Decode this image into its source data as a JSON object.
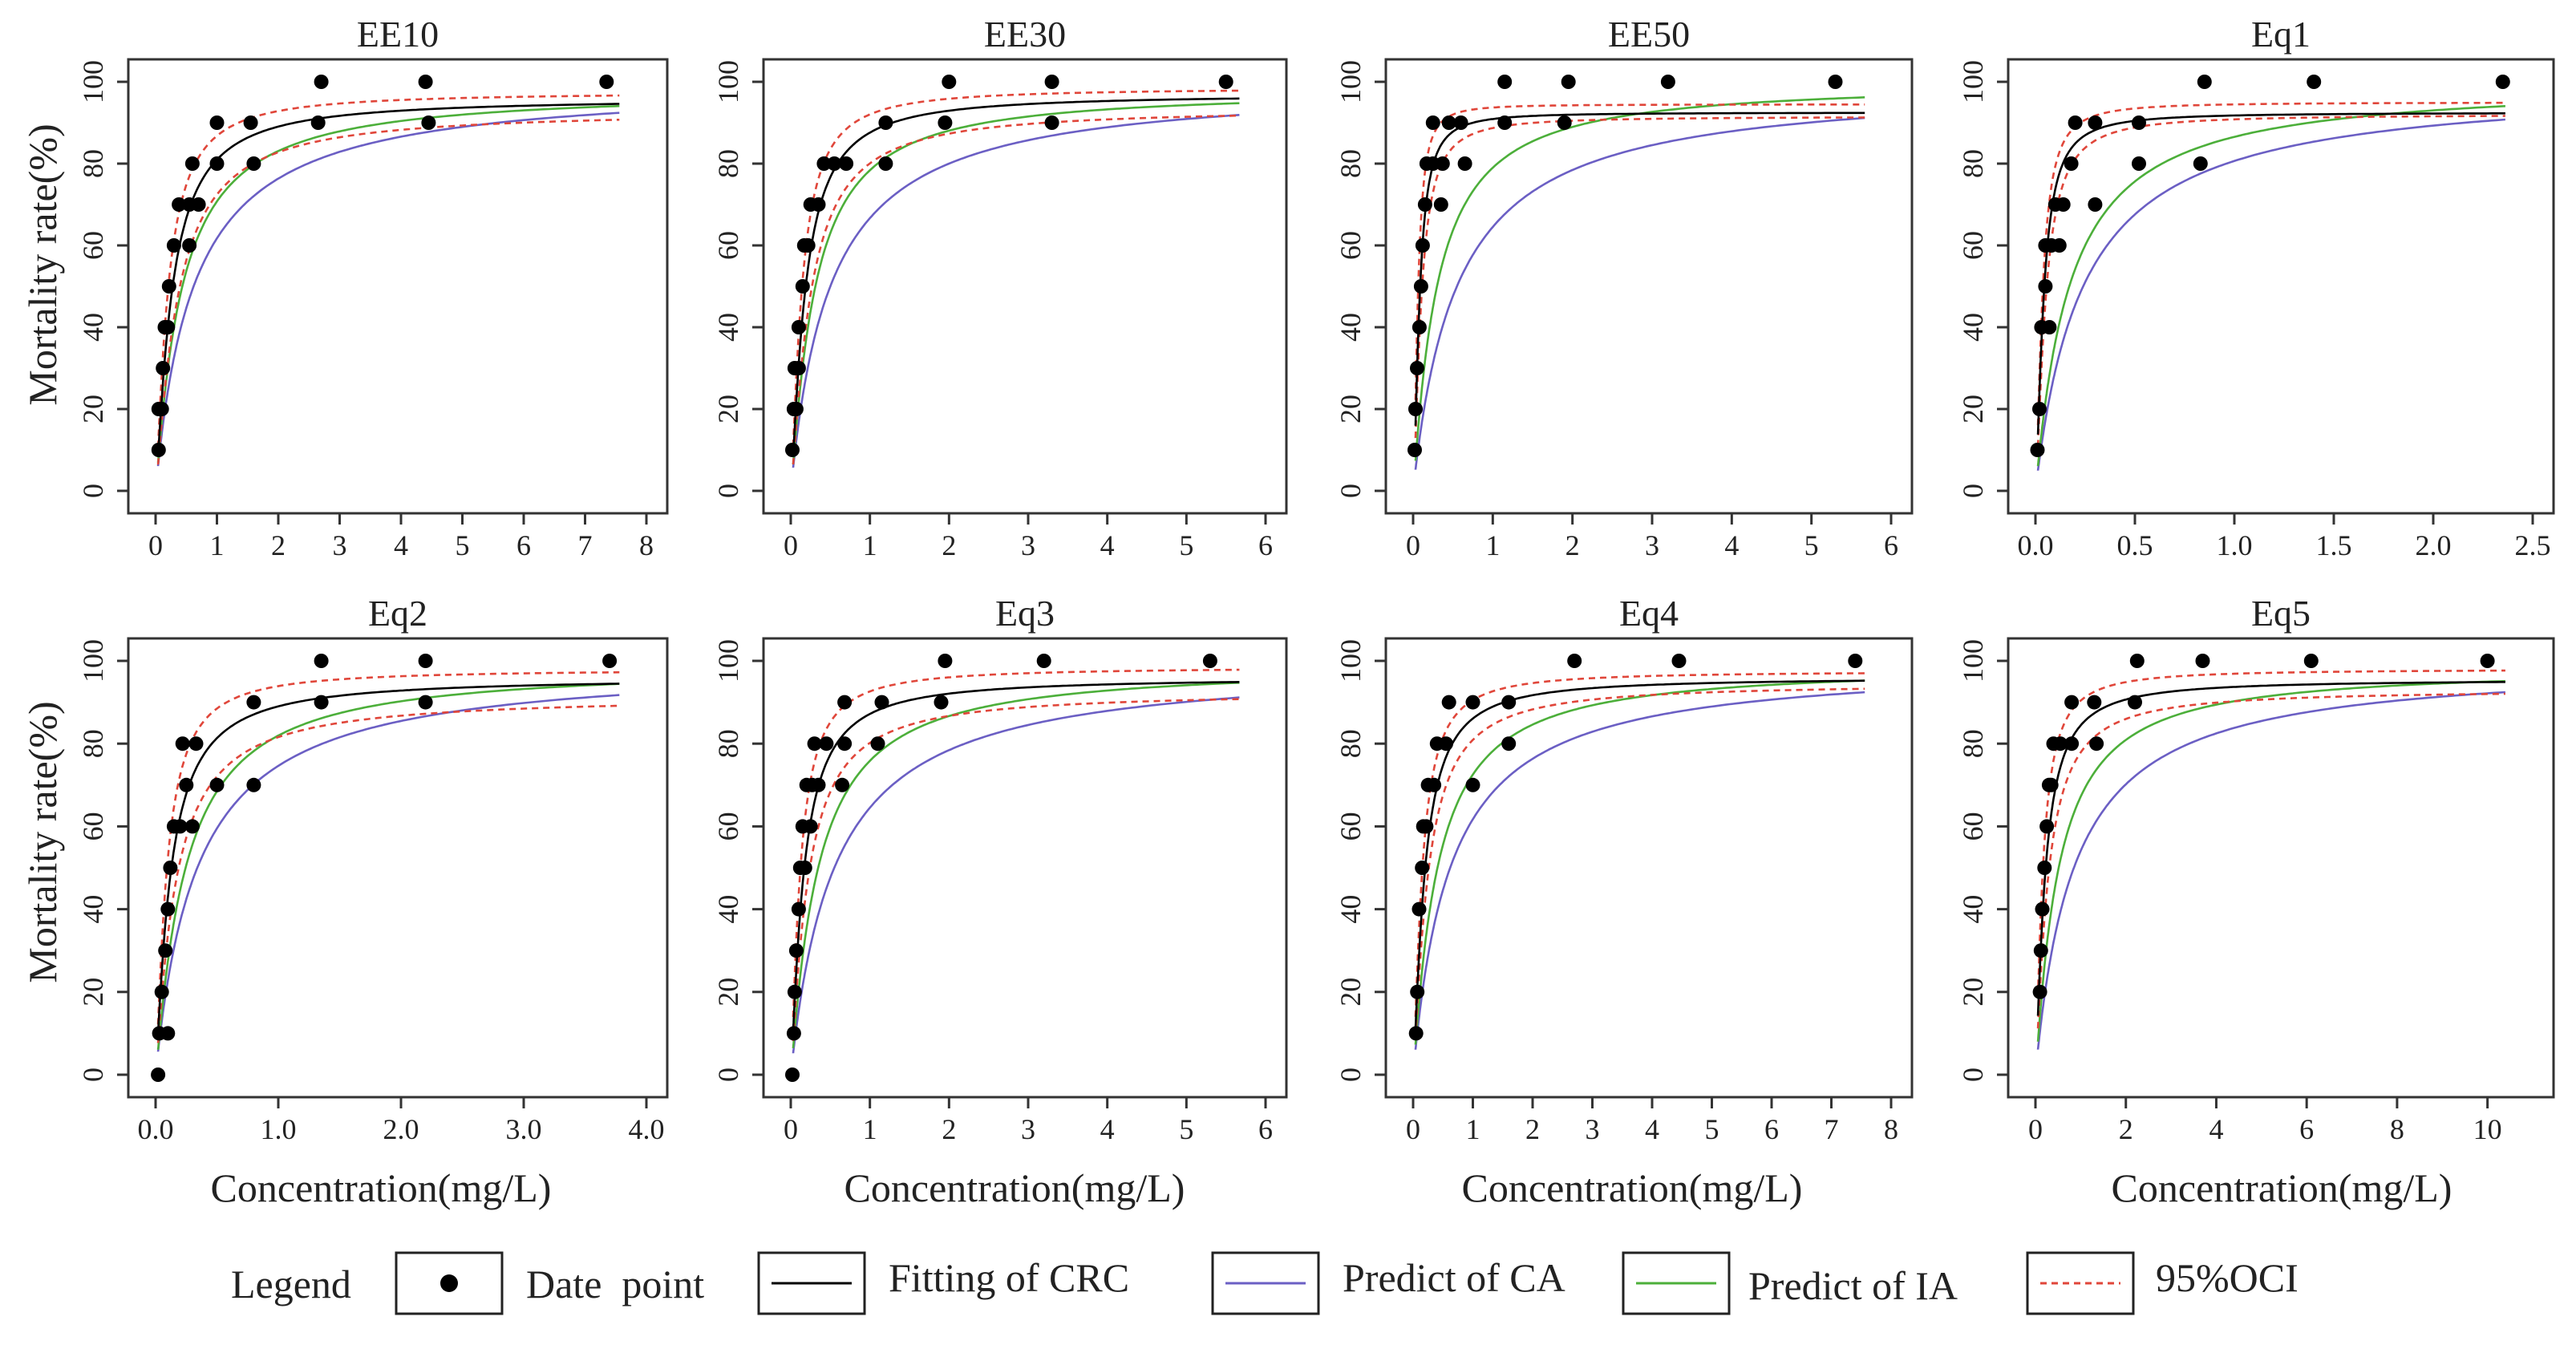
{
  "figure": {
    "y_axis_title": "Mortality rate(%)",
    "x_axis_title": "Concentration(mg/L)"
  },
  "legend": {
    "title": "Legend",
    "items": [
      {
        "key": "points",
        "label": "Date  point",
        "style": "dot",
        "color": "#000000"
      },
      {
        "key": "fit",
        "label": "Fitting of CRC",
        "style": "line",
        "color": "#000000"
      },
      {
        "key": "ca",
        "label": "Predict of CA",
        "style": "line",
        "color": "#6b5fc4"
      },
      {
        "key": "ia",
        "label": "Predict of IA",
        "style": "line",
        "color": "#4caf3a"
      },
      {
        "key": "oci",
        "label": "95%OCI",
        "style": "dash",
        "color": "#e0463a"
      }
    ]
  },
  "chart_data": [
    {
      "title": "EE10",
      "type": "scatter",
      "xlim": [
        0,
        8
      ],
      "ylim": [
        0,
        100
      ],
      "xticks": [
        0,
        1,
        2,
        3,
        4,
        5,
        6,
        7,
        8
      ],
      "xtick_labels": [
        "0",
        "1",
        "2",
        "3",
        "4",
        "5",
        "6",
        "7",
        "8"
      ],
      "yticks": [
        0,
        20,
        40,
        60,
        80,
        100
      ],
      "points": [
        [
          0.05,
          10
        ],
        [
          0.05,
          20
        ],
        [
          0.1,
          20
        ],
        [
          0.12,
          30
        ],
        [
          0.15,
          40
        ],
        [
          0.2,
          40
        ],
        [
          0.22,
          50
        ],
        [
          0.3,
          60
        ],
        [
          0.38,
          70
        ],
        [
          0.55,
          60
        ],
        [
          0.55,
          70
        ],
        [
          0.6,
          80
        ],
        [
          0.7,
          70
        ],
        [
          1.0,
          80
        ],
        [
          1.0,
          90
        ],
        [
          1.55,
          90
        ],
        [
          1.6,
          80
        ],
        [
          2.65,
          90
        ],
        [
          2.7,
          100
        ],
        [
          4.4,
          100
        ],
        [
          4.45,
          90
        ],
        [
          7.35,
          100
        ]
      ],
      "fit": {
        "top": 96,
        "ec50": 0.26,
        "hill": 1.25
      },
      "ca": {
        "top": 100,
        "ec50": 0.62,
        "hill": 1.0
      },
      "ia": {
        "top": 98,
        "ec50": 0.42,
        "hill": 1.1
      },
      "oci_upper": {
        "top": 97.5,
        "ec50": 0.2,
        "hill": 1.3
      },
      "oci_lower": {
        "top": 93,
        "ec50": 0.35,
        "hill": 1.2
      }
    },
    {
      "title": "EE30",
      "type": "scatter",
      "xlim": [
        0,
        6
      ],
      "ylim": [
        0,
        100
      ],
      "xticks": [
        0,
        1,
        2,
        3,
        4,
        5,
        6
      ],
      "xtick_labels": [
        "0",
        "1",
        "2",
        "3",
        "4",
        "5",
        "6"
      ],
      "yticks": [
        0,
        20,
        40,
        60,
        80,
        100
      ],
      "points": [
        [
          0.02,
          10
        ],
        [
          0.04,
          20
        ],
        [
          0.05,
          30
        ],
        [
          0.07,
          20
        ],
        [
          0.1,
          30
        ],
        [
          0.1,
          40
        ],
        [
          0.15,
          50
        ],
        [
          0.17,
          60
        ],
        [
          0.22,
          60
        ],
        [
          0.25,
          70
        ],
        [
          0.35,
          70
        ],
        [
          0.42,
          80
        ],
        [
          0.55,
          80
        ],
        [
          0.7,
          80
        ],
        [
          1.2,
          80
        ],
        [
          1.2,
          90
        ],
        [
          1.95,
          90
        ],
        [
          2.0,
          100
        ],
        [
          3.3,
          90
        ],
        [
          3.3,
          100
        ],
        [
          5.5,
          100
        ]
      ],
      "fit": {
        "top": 97,
        "ec50": 0.18,
        "hill": 1.3
      },
      "ca": {
        "top": 100,
        "ec50": 0.5,
        "hill": 1.0
      },
      "ia": {
        "top": 98,
        "ec50": 0.3,
        "hill": 1.15
      },
      "oci_upper": {
        "top": 98.5,
        "ec50": 0.14,
        "hill": 1.35
      },
      "oci_lower": {
        "top": 93.5,
        "ec50": 0.24,
        "hill": 1.25
      }
    },
    {
      "title": "EE50",
      "type": "scatter",
      "xlim": [
        0,
        6
      ],
      "ylim": [
        0,
        100
      ],
      "xticks": [
        0,
        1,
        2,
        3,
        4,
        5,
        6
      ],
      "xtick_labels": [
        "0",
        "1",
        "2",
        "3",
        "4",
        "5",
        "6"
      ],
      "yticks": [
        0,
        20,
        40,
        60,
        80,
        100
      ],
      "points": [
        [
          0.02,
          10
        ],
        [
          0.03,
          20
        ],
        [
          0.05,
          30
        ],
        [
          0.08,
          40
        ],
        [
          0.1,
          50
        ],
        [
          0.12,
          60
        ],
        [
          0.15,
          70
        ],
        [
          0.17,
          80
        ],
        [
          0.25,
          80
        ],
        [
          0.25,
          90
        ],
        [
          0.35,
          70
        ],
        [
          0.37,
          80
        ],
        [
          0.45,
          90
        ],
        [
          0.6,
          90
        ],
        [
          0.65,
          80
        ],
        [
          1.15,
          90
        ],
        [
          1.15,
          100
        ],
        [
          1.9,
          90
        ],
        [
          1.95,
          100
        ],
        [
          3.2,
          100
        ],
        [
          5.3,
          100
        ]
      ],
      "fit": {
        "top": 92.5,
        "ec50": 0.08,
        "hill": 1.6
      },
      "ca": {
        "top": 100,
        "ec50": 0.55,
        "hill": 1.0
      },
      "ia": {
        "top": 100,
        "ec50": 0.3,
        "hill": 1.1
      },
      "oci_upper": {
        "top": 94.5,
        "ec50": 0.06,
        "hill": 1.7
      },
      "oci_lower": {
        "top": 91.5,
        "ec50": 0.1,
        "hill": 1.5
      }
    },
    {
      "title": "Eq1",
      "type": "scatter",
      "xlim": [
        0,
        2.5
      ],
      "ylim": [
        0,
        100
      ],
      "xticks": [
        0,
        0.5,
        1.0,
        1.5,
        2.0,
        2.5
      ],
      "xtick_labels": [
        "0.0",
        "0.5",
        "1.0",
        "1.5",
        "2.0",
        "2.5"
      ],
      "yticks": [
        0,
        20,
        40,
        60,
        80,
        100
      ],
      "points": [
        [
          0.01,
          10
        ],
        [
          0.02,
          20
        ],
        [
          0.03,
          40
        ],
        [
          0.05,
          50
        ],
        [
          0.05,
          60
        ],
        [
          0.07,
          40
        ],
        [
          0.08,
          60
        ],
        [
          0.1,
          70
        ],
        [
          0.12,
          60
        ],
        [
          0.14,
          70
        ],
        [
          0.18,
          80
        ],
        [
          0.2,
          90
        ],
        [
          0.3,
          70
        ],
        [
          0.3,
          90
        ],
        [
          0.52,
          80
        ],
        [
          0.52,
          90
        ],
        [
          0.83,
          80
        ],
        [
          0.85,
          100
        ],
        [
          1.4,
          100
        ],
        [
          2.35,
          100
        ]
      ],
      "fit": {
        "top": 92.5,
        "ec50": 0.04,
        "hill": 1.5
      },
      "ca": {
        "top": 100,
        "ec50": 0.24,
        "hill": 1.0
      },
      "ia": {
        "top": 100,
        "ec50": 0.17,
        "hill": 1.05
      },
      "oci_upper": {
        "top": 95,
        "ec50": 0.035,
        "hill": 1.55
      },
      "oci_lower": {
        "top": 92,
        "ec50": 0.05,
        "hill": 1.45
      }
    },
    {
      "title": "Eq2",
      "type": "scatter",
      "xlim": [
        0,
        4
      ],
      "ylim": [
        0,
        100
      ],
      "xticks": [
        0,
        1,
        2,
        3,
        4
      ],
      "xtick_labels": [
        "0.0",
        "1.0",
        "2.0",
        "3.0",
        "4.0"
      ],
      "yticks": [
        0,
        20,
        40,
        60,
        80,
        100
      ],
      "points": [
        [
          0.02,
          0
        ],
        [
          0.03,
          10
        ],
        [
          0.05,
          20
        ],
        [
          0.08,
          30
        ],
        [
          0.1,
          10
        ],
        [
          0.1,
          40
        ],
        [
          0.12,
          50
        ],
        [
          0.15,
          60
        ],
        [
          0.2,
          60
        ],
        [
          0.22,
          80
        ],
        [
          0.25,
          70
        ],
        [
          0.3,
          60
        ],
        [
          0.33,
          80
        ],
        [
          0.5,
          70
        ],
        [
          0.8,
          70
        ],
        [
          0.8,
          90
        ],
        [
          1.35,
          90
        ],
        [
          1.35,
          100
        ],
        [
          2.2,
          90
        ],
        [
          2.2,
          100
        ],
        [
          3.7,
          100
        ]
      ],
      "fit": {
        "top": 96,
        "ec50": 0.12,
        "hill": 1.2
      },
      "ca": {
        "top": 100,
        "ec50": 0.34,
        "hill": 1.0
      },
      "ia": {
        "top": 99,
        "ec50": 0.24,
        "hill": 1.1
      },
      "oci_upper": {
        "top": 98,
        "ec50": 0.09,
        "hill": 1.3
      },
      "oci_lower": {
        "top": 91.5,
        "ec50": 0.16,
        "hill": 1.15
      }
    },
    {
      "title": "Eq3",
      "type": "scatter",
      "xlim": [
        0,
        6
      ],
      "ylim": [
        0,
        100
      ],
      "xticks": [
        0,
        1,
        2,
        3,
        4,
        5,
        6
      ],
      "xtick_labels": [
        "0",
        "1",
        "2",
        "3",
        "4",
        "5",
        "6"
      ],
      "yticks": [
        0,
        20,
        40,
        60,
        80,
        100
      ],
      "points": [
        [
          0.02,
          0
        ],
        [
          0.04,
          10
        ],
        [
          0.05,
          20
        ],
        [
          0.07,
          30
        ],
        [
          0.1,
          40
        ],
        [
          0.12,
          50
        ],
        [
          0.15,
          60
        ],
        [
          0.18,
          50
        ],
        [
          0.2,
          70
        ],
        [
          0.25,
          60
        ],
        [
          0.27,
          70
        ],
        [
          0.3,
          80
        ],
        [
          0.35,
          70
        ],
        [
          0.45,
          80
        ],
        [
          0.65,
          70
        ],
        [
          0.68,
          90
        ],
        [
          0.68,
          80
        ],
        [
          1.1,
          80
        ],
        [
          1.15,
          90
        ],
        [
          1.9,
          90
        ],
        [
          1.95,
          100
        ],
        [
          3.2,
          100
        ],
        [
          5.3,
          100
        ]
      ],
      "fit": {
        "top": 96,
        "ec50": 0.16,
        "hill": 1.25
      },
      "ca": {
        "top": 100,
        "ec50": 0.55,
        "hill": 1.0
      },
      "ia": {
        "top": 99,
        "ec50": 0.34,
        "hill": 1.1
      },
      "oci_upper": {
        "top": 98.5,
        "ec50": 0.12,
        "hill": 1.3
      },
      "oci_lower": {
        "top": 92.5,
        "ec50": 0.21,
        "hill": 1.2
      }
    },
    {
      "title": "Eq4",
      "type": "scatter",
      "xlim": [
        0,
        8
      ],
      "ylim": [
        0,
        100
      ],
      "xticks": [
        0,
        1,
        2,
        3,
        4,
        5,
        6,
        7,
        8
      ],
      "xtick_labels": [
        "0",
        "1",
        "2",
        "3",
        "4",
        "5",
        "6",
        "7",
        "8"
      ],
      "yticks": [
        0,
        20,
        40,
        60,
        80,
        100
      ],
      "points": [
        [
          0.05,
          10
        ],
        [
          0.07,
          20
        ],
        [
          0.1,
          40
        ],
        [
          0.15,
          50
        ],
        [
          0.17,
          60
        ],
        [
          0.22,
          60
        ],
        [
          0.25,
          70
        ],
        [
          0.35,
          70
        ],
        [
          0.4,
          80
        ],
        [
          0.55,
          80
        ],
        [
          0.6,
          90
        ],
        [
          1.0,
          70
        ],
        [
          1.0,
          90
        ],
        [
          1.6,
          80
        ],
        [
          1.6,
          90
        ],
        [
          2.7,
          100
        ],
        [
          4.45,
          100
        ],
        [
          7.4,
          100
        ]
      ],
      "fit": {
        "top": 96,
        "ec50": 0.19,
        "hill": 1.3
      },
      "ca": {
        "top": 100,
        "ec50": 0.62,
        "hill": 1.0
      },
      "ia": {
        "top": 99,
        "ec50": 0.4,
        "hill": 1.1
      },
      "oci_upper": {
        "top": 97.5,
        "ec50": 0.15,
        "hill": 1.35
      },
      "oci_lower": {
        "top": 94.5,
        "ec50": 0.24,
        "hill": 1.25
      }
    },
    {
      "title": "Eq5",
      "type": "scatter",
      "xlim": [
        0,
        11
      ],
      "ylim": [
        0,
        100
      ],
      "xticks": [
        0,
        2,
        4,
        6,
        8,
        10
      ],
      "xtick_labels": [
        "0",
        "2",
        "4",
        "6",
        "8",
        "10"
      ],
      "yticks": [
        0,
        20,
        40,
        60,
        80,
        100
      ],
      "points": [
        [
          0.1,
          20
        ],
        [
          0.12,
          30
        ],
        [
          0.15,
          40
        ],
        [
          0.2,
          50
        ],
        [
          0.25,
          60
        ],
        [
          0.3,
          70
        ],
        [
          0.35,
          70
        ],
        [
          0.4,
          80
        ],
        [
          0.55,
          80
        ],
        [
          0.8,
          90
        ],
        [
          0.8,
          80
        ],
        [
          1.3,
          90
        ],
        [
          1.35,
          80
        ],
        [
          2.2,
          90
        ],
        [
          2.25,
          100
        ],
        [
          3.7,
          100
        ],
        [
          6.1,
          100
        ],
        [
          10.0,
          100
        ]
      ],
      "fit": {
        "top": 95.5,
        "ec50": 0.21,
        "hill": 1.3
      },
      "ca": {
        "top": 100,
        "ec50": 0.85,
        "hill": 1.0
      },
      "ia": {
        "top": 98.5,
        "ec50": 0.5,
        "hill": 1.1
      },
      "oci_upper": {
        "top": 98,
        "ec50": 0.16,
        "hill": 1.35
      },
      "oci_lower": {
        "top": 93,
        "ec50": 0.27,
        "hill": 1.25
      }
    }
  ]
}
